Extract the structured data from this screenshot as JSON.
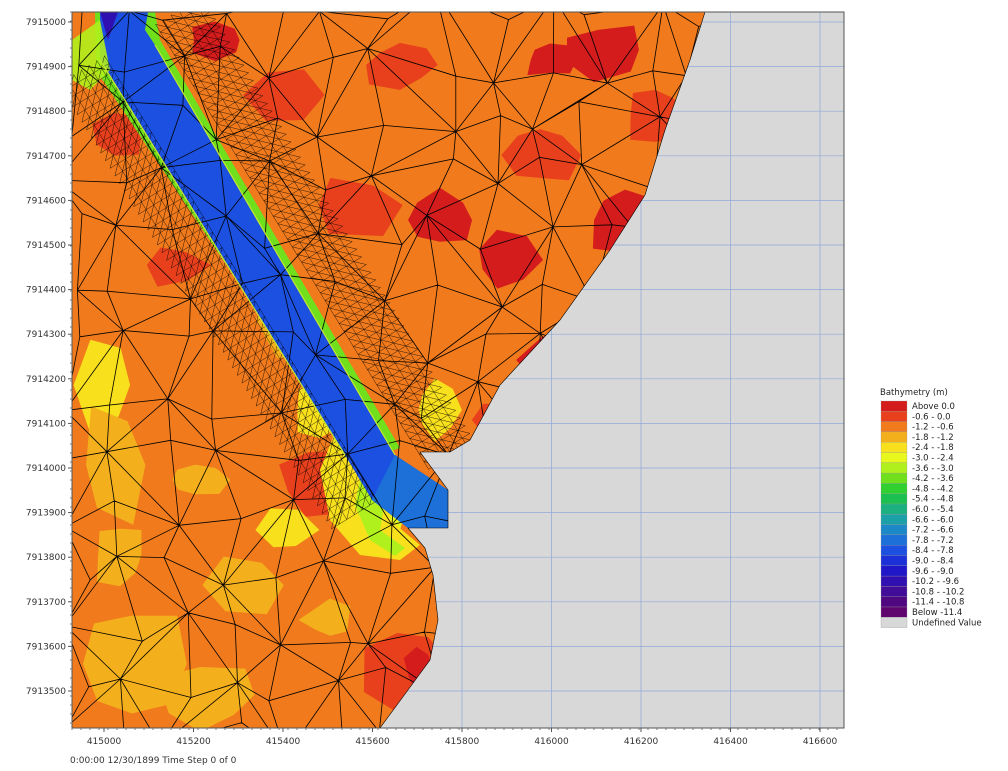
{
  "map": {
    "y_ticks": [
      "7915000",
      "7914900",
      "7914800",
      "7914700",
      "7914600",
      "7914500",
      "7914400",
      "7914300",
      "7914200",
      "7914100",
      "7914000",
      "7913900",
      "7913800",
      "7913700",
      "7913600",
      "7913500"
    ],
    "x_ticks": [
      "415000",
      "415200",
      "415400",
      "415600",
      "415800",
      "416000",
      "416200",
      "416400",
      "416600"
    ],
    "background_color": "#d8d8d8",
    "grid_color": "#8fa8d8",
    "mesh_line_color": "#000000"
  },
  "legend": {
    "title": "Bathymetry (m)",
    "entries": [
      {
        "label": "Above   0.0",
        "color": "#d41c1c"
      },
      {
        "label": "-0.6 -  0.0",
        "color": "#e8401c"
      },
      {
        "label": "-1.2 - -0.6",
        "color": "#f07a1c"
      },
      {
        "label": "-1.8 - -1.2",
        "color": "#f4b01c"
      },
      {
        "label": "-2.4 - -1.8",
        "color": "#f8e01c"
      },
      {
        "label": "-3.0 - -2.4",
        "color": "#e8f81c"
      },
      {
        "label": "-3.6 - -3.0",
        "color": "#b0f01c"
      },
      {
        "label": "-4.2 - -3.6",
        "color": "#70e01c"
      },
      {
        "label": "-4.8 - -4.2",
        "color": "#30d030"
      },
      {
        "label": "-5.4 - -4.8",
        "color": "#1cc050"
      },
      {
        "label": "-6.0 - -5.4",
        "color": "#1cb080"
      },
      {
        "label": "-6.6 - -6.0",
        "color": "#1ca0a8"
      },
      {
        "label": "-7.2 - -6.6",
        "color": "#1c88c8"
      },
      {
        "label": "-7.8 - -7.2",
        "color": "#1c70d8"
      },
      {
        "label": "-8.4 - -7.8",
        "color": "#1c50e0"
      },
      {
        "label": "-9.0 - -8.4",
        "color": "#1c30d8"
      },
      {
        "label": "-9.6 - -9.0",
        "color": "#2018c8"
      },
      {
        "label": "-10.2 - -9.6",
        "color": "#3010b0"
      },
      {
        "label": "-10.8 - -10.2",
        "color": "#400c98"
      },
      {
        "label": "-11.4 - -10.8",
        "color": "#500880"
      },
      {
        "label": "Below -11.4",
        "color": "#600470"
      },
      {
        "label": "Undefined Value",
        "color": "#d8d8d8"
      }
    ]
  },
  "status": {
    "text": "0:00:00 12/30/1899  Time Step 0 of 0"
  }
}
